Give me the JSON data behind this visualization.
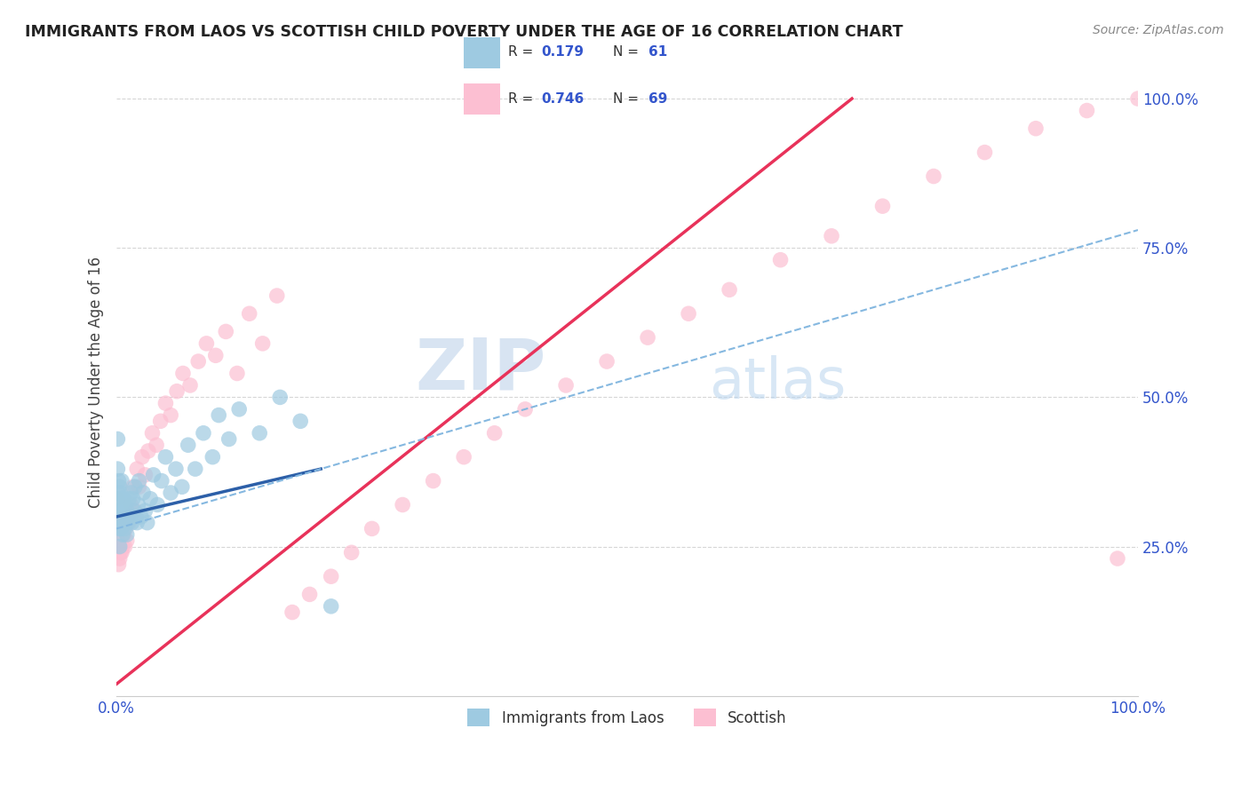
{
  "title": "IMMIGRANTS FROM LAOS VS SCOTTISH CHILD POVERTY UNDER THE AGE OF 16 CORRELATION CHART",
  "source": "Source: ZipAtlas.com",
  "ylabel": "Child Poverty Under the Age of 16",
  "xlim": [
    0.0,
    1.0
  ],
  "ylim": [
    0.0,
    1.05
  ],
  "xticks": [
    0.0,
    0.25,
    0.5,
    0.75,
    1.0
  ],
  "xticklabels": [
    "0.0%",
    "",
    "",
    "",
    "100.0%"
  ],
  "yticks": [
    0.25,
    0.5,
    0.75,
    1.0
  ],
  "yticklabels": [
    "25.0%",
    "50.0%",
    "75.0%",
    "100.0%"
  ],
  "watermark_zip": "ZIP",
  "watermark_atlas": "atlas",
  "legend_label1": "Immigrants from Laos",
  "legend_label2": "Scottish",
  "blue_color": "#9ecae1",
  "pink_color": "#fcbfd2",
  "blue_line_color": "#2c5fa8",
  "pink_line_color": "#e8325a",
  "dashed_line_color": "#85b8e0",
  "title_color": "#222222",
  "tick_color": "#3355cc",
  "background_color": "#ffffff",
  "grid_color": "#cccccc",
  "blue_scatter_x": [
    0.001,
    0.001,
    0.001,
    0.002,
    0.002,
    0.002,
    0.002,
    0.003,
    0.003,
    0.003,
    0.003,
    0.004,
    0.004,
    0.004,
    0.005,
    0.005,
    0.005,
    0.006,
    0.006,
    0.007,
    0.007,
    0.008,
    0.008,
    0.009,
    0.01,
    0.01,
    0.011,
    0.012,
    0.013,
    0.014,
    0.015,
    0.016,
    0.017,
    0.018,
    0.019,
    0.02,
    0.021,
    0.022,
    0.024,
    0.026,
    0.028,
    0.03,
    0.033,
    0.036,
    0.04,
    0.044,
    0.048,
    0.053,
    0.058,
    0.064,
    0.07,
    0.077,
    0.085,
    0.094,
    0.1,
    0.11,
    0.12,
    0.14,
    0.16,
    0.18,
    0.21
  ],
  "blue_scatter_y": [
    0.34,
    0.38,
    0.43,
    0.29,
    0.31,
    0.33,
    0.36,
    0.25,
    0.28,
    0.31,
    0.35,
    0.28,
    0.31,
    0.34,
    0.3,
    0.33,
    0.36,
    0.27,
    0.31,
    0.29,
    0.33,
    0.28,
    0.32,
    0.3,
    0.27,
    0.31,
    0.29,
    0.33,
    0.3,
    0.34,
    0.29,
    0.33,
    0.31,
    0.35,
    0.3,
    0.29,
    0.32,
    0.36,
    0.3,
    0.34,
    0.31,
    0.29,
    0.33,
    0.37,
    0.32,
    0.36,
    0.4,
    0.34,
    0.38,
    0.35,
    0.42,
    0.38,
    0.44,
    0.4,
    0.47,
    0.43,
    0.48,
    0.44,
    0.5,
    0.46,
    0.15
  ],
  "pink_scatter_x": [
    0.001,
    0.001,
    0.001,
    0.002,
    0.002,
    0.002,
    0.003,
    0.003,
    0.003,
    0.004,
    0.004,
    0.005,
    0.005,
    0.006,
    0.006,
    0.007,
    0.008,
    0.009,
    0.01,
    0.011,
    0.012,
    0.014,
    0.016,
    0.018,
    0.02,
    0.022,
    0.025,
    0.028,
    0.031,
    0.035,
    0.039,
    0.043,
    0.048,
    0.053,
    0.059,
    0.065,
    0.072,
    0.08,
    0.088,
    0.097,
    0.107,
    0.118,
    0.13,
    0.143,
    0.157,
    0.172,
    0.189,
    0.21,
    0.23,
    0.25,
    0.28,
    0.31,
    0.34,
    0.37,
    0.4,
    0.44,
    0.48,
    0.52,
    0.56,
    0.6,
    0.65,
    0.7,
    0.75,
    0.8,
    0.85,
    0.9,
    0.95,
    0.98,
    1.0
  ],
  "pink_scatter_y": [
    0.26,
    0.3,
    0.33,
    0.22,
    0.25,
    0.28,
    0.23,
    0.26,
    0.29,
    0.24,
    0.28,
    0.24,
    0.28,
    0.25,
    0.29,
    0.27,
    0.25,
    0.28,
    0.26,
    0.3,
    0.29,
    0.32,
    0.35,
    0.31,
    0.38,
    0.35,
    0.4,
    0.37,
    0.41,
    0.44,
    0.42,
    0.46,
    0.49,
    0.47,
    0.51,
    0.54,
    0.52,
    0.56,
    0.59,
    0.57,
    0.61,
    0.54,
    0.64,
    0.59,
    0.67,
    0.14,
    0.17,
    0.2,
    0.24,
    0.28,
    0.32,
    0.36,
    0.4,
    0.44,
    0.48,
    0.52,
    0.56,
    0.6,
    0.64,
    0.68,
    0.73,
    0.77,
    0.82,
    0.87,
    0.91,
    0.95,
    0.98,
    0.23,
    1.0
  ],
  "blue_trendline": [
    0.0,
    0.3,
    0.2,
    0.38
  ],
  "pink_trendline": [
    0.0,
    0.02,
    0.72,
    1.0
  ],
  "dashed_trendline": [
    0.0,
    0.28,
    1.0,
    0.78
  ]
}
